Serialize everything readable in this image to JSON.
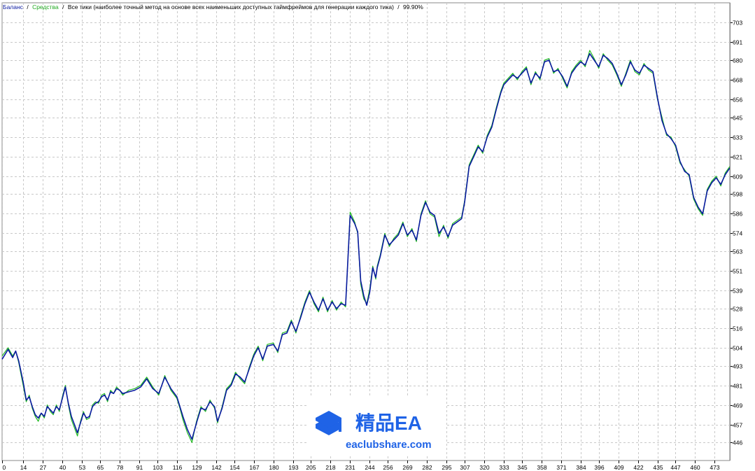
{
  "legend": {
    "balance_label": "Баланс",
    "equity_label": "Средства",
    "method_label": "Все тики (наиболее точный метод на основе всех наименьших доступных таймфреймов для генерации каждого тика)",
    "quality_label": "99.90%",
    "separator": "/"
  },
  "colors": {
    "balance": "#0a1aa0",
    "equity": "#22bb22",
    "grid": "#c8c8c8",
    "axis": "#000000",
    "watermark_blue": "#1f63e6"
  },
  "watermark": {
    "icon": "book-stack-icon",
    "title": "精品EA",
    "site": "eaclubshare.com"
  },
  "chart_data": {
    "type": "line",
    "title": "",
    "xlabel": "",
    "ylabel": "",
    "grid": true,
    "legend_position": "top-left",
    "xlim": [
      0,
      483
    ],
    "ylim": [
      435,
      710
    ],
    "x_ticks": [
      0,
      14,
      27,
      40,
      53,
      65,
      78,
      91,
      103,
      116,
      129,
      142,
      154,
      167,
      180,
      193,
      205,
      218,
      231,
      244,
      256,
      269,
      282,
      295,
      307,
      320,
      333,
      345,
      358,
      371,
      384,
      396,
      409,
      422,
      435,
      447,
      460,
      473
    ],
    "y_ticks": [
      446,
      457,
      469,
      481,
      493,
      504,
      516,
      528,
      539,
      551,
      563,
      574,
      586,
      598,
      609,
      621,
      633,
      645,
      656,
      668,
      680,
      691,
      703
    ],
    "series": [
      {
        "name": "Баланс",
        "x": [
          0,
          4,
          7,
          9,
          11,
          14,
          16,
          18,
          20,
          22,
          24,
          26,
          28,
          30,
          32,
          34,
          36,
          38,
          40,
          42,
          44,
          46,
          48,
          50,
          52,
          54,
          56,
          58,
          60,
          62,
          64,
          66,
          68,
          70,
          72,
          74,
          76,
          78,
          80,
          84,
          88,
          92,
          96,
          100,
          104,
          108,
          112,
          116,
          118,
          120,
          123,
          126,
          129,
          132,
          135,
          138,
          141,
          143,
          146,
          149,
          152,
          155,
          158,
          161,
          164,
          167,
          170,
          173,
          176,
          180,
          183,
          186,
          189,
          192,
          195,
          198,
          201,
          204,
          207,
          210,
          213,
          216,
          219,
          222,
          225,
          228,
          231,
          234,
          236,
          237,
          238,
          240,
          242,
          244,
          246,
          248,
          249,
          251,
          254,
          257,
          260,
          263,
          266,
          269,
          272,
          275,
          278,
          281,
          284,
          287,
          290,
          293,
          296,
          299,
          302,
          305,
          307,
          310,
          313,
          316,
          319,
          322,
          325,
          328,
          331,
          333,
          336,
          339,
          342,
          345,
          348,
          351,
          354,
          357,
          360,
          363,
          366,
          369,
          372,
          375,
          378,
          381,
          384,
          387,
          390,
          393,
          396,
          399,
          402,
          405,
          408,
          411,
          414,
          417,
          420,
          423,
          426,
          429,
          432,
          435,
          438,
          441,
          444,
          447,
          450,
          453,
          456,
          459,
          462,
          465,
          468,
          471,
          474,
          477,
          480,
          483
        ],
        "y": [
          497,
          503,
          498,
          502,
          496,
          483,
          472,
          474,
          468,
          463,
          461,
          464,
          462,
          468,
          466,
          464,
          468,
          466,
          473,
          480,
          470,
          462,
          457,
          452,
          458,
          464,
          461,
          462,
          468,
          470,
          471,
          474,
          475,
          472,
          477,
          476,
          479,
          478,
          476,
          477,
          478,
          480,
          485,
          479,
          476,
          486,
          479,
          474,
          468,
          462,
          454,
          448,
          458,
          467,
          466,
          471,
          468,
          459,
          467,
          478,
          481,
          488,
          486,
          483,
          491,
          499,
          504,
          497,
          505,
          506,
          502,
          512,
          513,
          520,
          514,
          522,
          531,
          538,
          532,
          527,
          534,
          527,
          532,
          528,
          531,
          530,
          585,
          580,
          575,
          560,
          545,
          536,
          530,
          538,
          553,
          547,
          553,
          560,
          573,
          567,
          570,
          573,
          580,
          573,
          576,
          570,
          585,
          593,
          587,
          585,
          574,
          578,
          572,
          579,
          581,
          583,
          593,
          615,
          621,
          627,
          624,
          633,
          639,
          650,
          660,
          665,
          668,
          671,
          669,
          672,
          675,
          666,
          672,
          669,
          679,
          680,
          673,
          674,
          670,
          664,
          672,
          676,
          679,
          677,
          684,
          680,
          676,
          683,
          681,
          678,
          672,
          665,
          671,
          679,
          674,
          672,
          677,
          675,
          673,
          657,
          643,
          635,
          632,
          628,
          618,
          612,
          610,
          596,
          590,
          586,
          600,
          605,
          608,
          604,
          610,
          614
        ]
      },
      {
        "name": "Средства",
        "x": [
          0,
          4,
          7,
          9,
          11,
          14,
          16,
          18,
          20,
          22,
          24,
          26,
          28,
          30,
          32,
          34,
          36,
          38,
          40,
          42,
          44,
          46,
          48,
          50,
          52,
          54,
          56,
          58,
          60,
          62,
          64,
          66,
          68,
          70,
          72,
          74,
          76,
          78,
          80,
          84,
          88,
          92,
          96,
          100,
          104,
          108,
          112,
          116,
          118,
          120,
          123,
          126,
          129,
          132,
          135,
          138,
          141,
          143,
          146,
          149,
          152,
          155,
          158,
          161,
          164,
          167,
          170,
          173,
          176,
          180,
          183,
          186,
          189,
          192,
          195,
          198,
          201,
          204,
          207,
          210,
          213,
          216,
          219,
          222,
          225,
          228,
          231,
          234,
          236,
          237,
          238,
          240,
          242,
          244,
          246,
          248,
          249,
          251,
          254,
          257,
          260,
          263,
          266,
          269,
          272,
          275,
          278,
          281,
          284,
          287,
          290,
          293,
          296,
          299,
          302,
          305,
          307,
          310,
          313,
          316,
          319,
          322,
          325,
          328,
          331,
          333,
          336,
          339,
          342,
          345,
          348,
          351,
          354,
          357,
          360,
          363,
          366,
          369,
          372,
          375,
          378,
          381,
          384,
          387,
          390,
          393,
          396,
          399,
          402,
          405,
          408,
          411,
          414,
          417,
          420,
          423,
          426,
          429,
          432,
          435,
          438,
          441,
          444,
          447,
          450,
          453,
          456,
          459,
          462,
          465,
          468,
          471,
          474,
          477,
          480,
          483
        ],
        "y": [
          499,
          504,
          499,
          502,
          495,
          481,
          471,
          475,
          467,
          462,
          459,
          464,
          461,
          469,
          465,
          463,
          469,
          465,
          474,
          481,
          469,
          460,
          455,
          450,
          459,
          465,
          460,
          461,
          469,
          471,
          470,
          475,
          476,
          471,
          478,
          476,
          480,
          478,
          475,
          478,
          479,
          481,
          486,
          480,
          475,
          487,
          478,
          473,
          467,
          460,
          452,
          446,
          459,
          468,
          465,
          472,
          467,
          458,
          468,
          479,
          482,
          489,
          485,
          482,
          492,
          500,
          505,
          496,
          506,
          507,
          501,
          513,
          514,
          521,
          513,
          523,
          532,
          539,
          531,
          526,
          535,
          526,
          533,
          527,
          532,
          529,
          587,
          581,
          574,
          559,
          543,
          534,
          531,
          540,
          554,
          546,
          554,
          561,
          574,
          566,
          571,
          574,
          581,
          572,
          577,
          569,
          586,
          594,
          586,
          584,
          572,
          579,
          571,
          580,
          582,
          584,
          594,
          616,
          622,
          628,
          623,
          634,
          640,
          651,
          661,
          666,
          669,
          672,
          668,
          673,
          676,
          665,
          673,
          668,
          680,
          681,
          672,
          675,
          669,
          663,
          673,
          677,
          680,
          676,
          686,
          681,
          675,
          684,
          680,
          677,
          671,
          664,
          672,
          680,
          673,
          671,
          678,
          674,
          672,
          656,
          645,
          634,
          633,
          627,
          617,
          613,
          609,
          595,
          589,
          585,
          601,
          606,
          609,
          603,
          611,
          615
        ]
      }
    ]
  }
}
